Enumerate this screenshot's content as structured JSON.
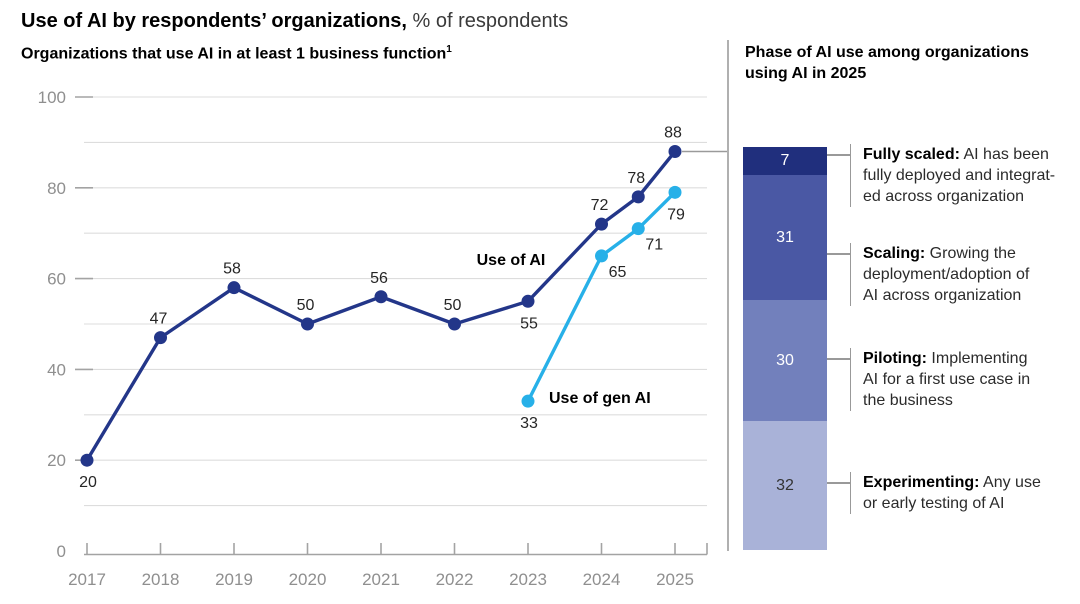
{
  "header": {
    "title_bold": "Use of AI by respondents’ organizations,",
    "title_unit": " % of respondents"
  },
  "left_chart": {
    "subtitle": "Organizations that use AI in at least 1 business function",
    "footnote_marker": "1"
  },
  "right_panel": {
    "title": "Phase of AI use among organizations using AI in 2025"
  },
  "chart_data": [
    {
      "type": "line",
      "title": "Organizations that use AI in at least 1 business function",
      "footnote_marker": "1",
      "unit": "% of respondents",
      "x_axis": {
        "ticks": [
          "2017",
          "2018",
          "2019",
          "2020",
          "2021",
          "2022",
          "2023",
          "2024",
          "2025"
        ]
      },
      "y_axis": {
        "min": 0,
        "max": 100,
        "labeled_ticks": [
          0,
          20,
          40,
          60,
          80,
          100
        ],
        "gridline_step": 10
      },
      "legend_position": "inline labels next to lines",
      "grid": "horizontal gridlines every 10, light gray",
      "series": [
        {
          "name": "Use of AI",
          "color": "#233689",
          "points": [
            {
              "x": 2017,
              "y": 20,
              "label": "20",
              "label_pos": "below"
            },
            {
              "x": 2018,
              "y": 47,
              "label": "47",
              "label_pos": "above"
            },
            {
              "x": 2019,
              "y": 58,
              "label": "58",
              "label_pos": "above"
            },
            {
              "x": 2020,
              "y": 50,
              "label": "50",
              "label_pos": "above"
            },
            {
              "x": 2021,
              "y": 56,
              "label": "56",
              "label_pos": "above"
            },
            {
              "x": 2022,
              "y": 50,
              "label": "50",
              "label_pos": "above"
            },
            {
              "x": 2023,
              "y": 55,
              "label": "55",
              "label_pos": "below"
            },
            {
              "x": 2024,
              "y": 72,
              "label": "72",
              "label_pos": "above"
            },
            {
              "x": 2024.5,
              "y": 78,
              "label": "78",
              "label_pos": "above"
            },
            {
              "x": 2025,
              "y": 88,
              "label": "88",
              "label_pos": "above"
            }
          ]
        },
        {
          "name": "Use of gen AI",
          "color": "#27b0e8",
          "points": [
            {
              "x": 2023,
              "y": 33,
              "label": "33",
              "label_pos": "below"
            },
            {
              "x": 2024,
              "y": 65,
              "label": "65",
              "label_pos": "below-right"
            },
            {
              "x": 2024.5,
              "y": 71,
              "label": "71",
              "label_pos": "below-right"
            },
            {
              "x": 2025,
              "y": 79,
              "label": "79",
              "label_pos": "below"
            }
          ]
        }
      ],
      "annotations": {
        "connector": "gray line from 2025 Use of AI point (88) to right-panel stacked bar"
      }
    },
    {
      "type": "bar",
      "stacked": true,
      "title": "Phase of AI use among organizations using AI in 2025",
      "categories": [
        "2025"
      ],
      "ylim": [
        0,
        100
      ],
      "segments": [
        {
          "name": "Fully scaled",
          "value": 7,
          "color": "#202f7d",
          "value_color": "#ffffff",
          "desc_lines": [
            "AI has been",
            "fully deployed and integrat-",
            "ed across organization"
          ]
        },
        {
          "name": "Scaling",
          "value": 31,
          "color": "#4a58a4",
          "value_color": "#ffffff",
          "desc_lines": [
            "Growing the",
            "deployment/adoption of",
            "AI across organization"
          ]
        },
        {
          "name": "Piloting",
          "value": 30,
          "color": "#7280bc",
          "value_color": "#ffffff",
          "desc_lines": [
            "Implementing",
            "AI for a first use case in",
            "the business"
          ]
        },
        {
          "name": "Experimenting",
          "value": 32,
          "color": "#a9b2d8",
          "value_color": "#333333",
          "desc_lines": [
            "Any use",
            "or early testing of AI"
          ]
        }
      ]
    }
  ]
}
